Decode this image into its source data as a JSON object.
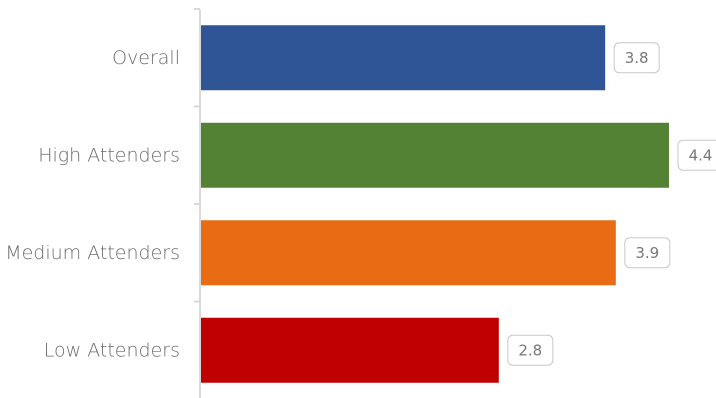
{
  "chart_data": {
    "type": "bar",
    "orientation": "horizontal",
    "title": "",
    "xlabel": "",
    "ylabel": "",
    "categories": [
      "Overall",
      "High Attenders",
      "Medium Attenders",
      "Low Attenders"
    ],
    "values": [
      3.8,
      4.4,
      3.9,
      2.8
    ],
    "value_labels": [
      "3.8",
      "4.4",
      "3.9",
      "2.8"
    ],
    "colors": [
      "#2f5597",
      "#548235",
      "#e96c14",
      "#c00000"
    ],
    "xlim": [
      0,
      4.4
    ],
    "grid": false,
    "legend": "none"
  }
}
